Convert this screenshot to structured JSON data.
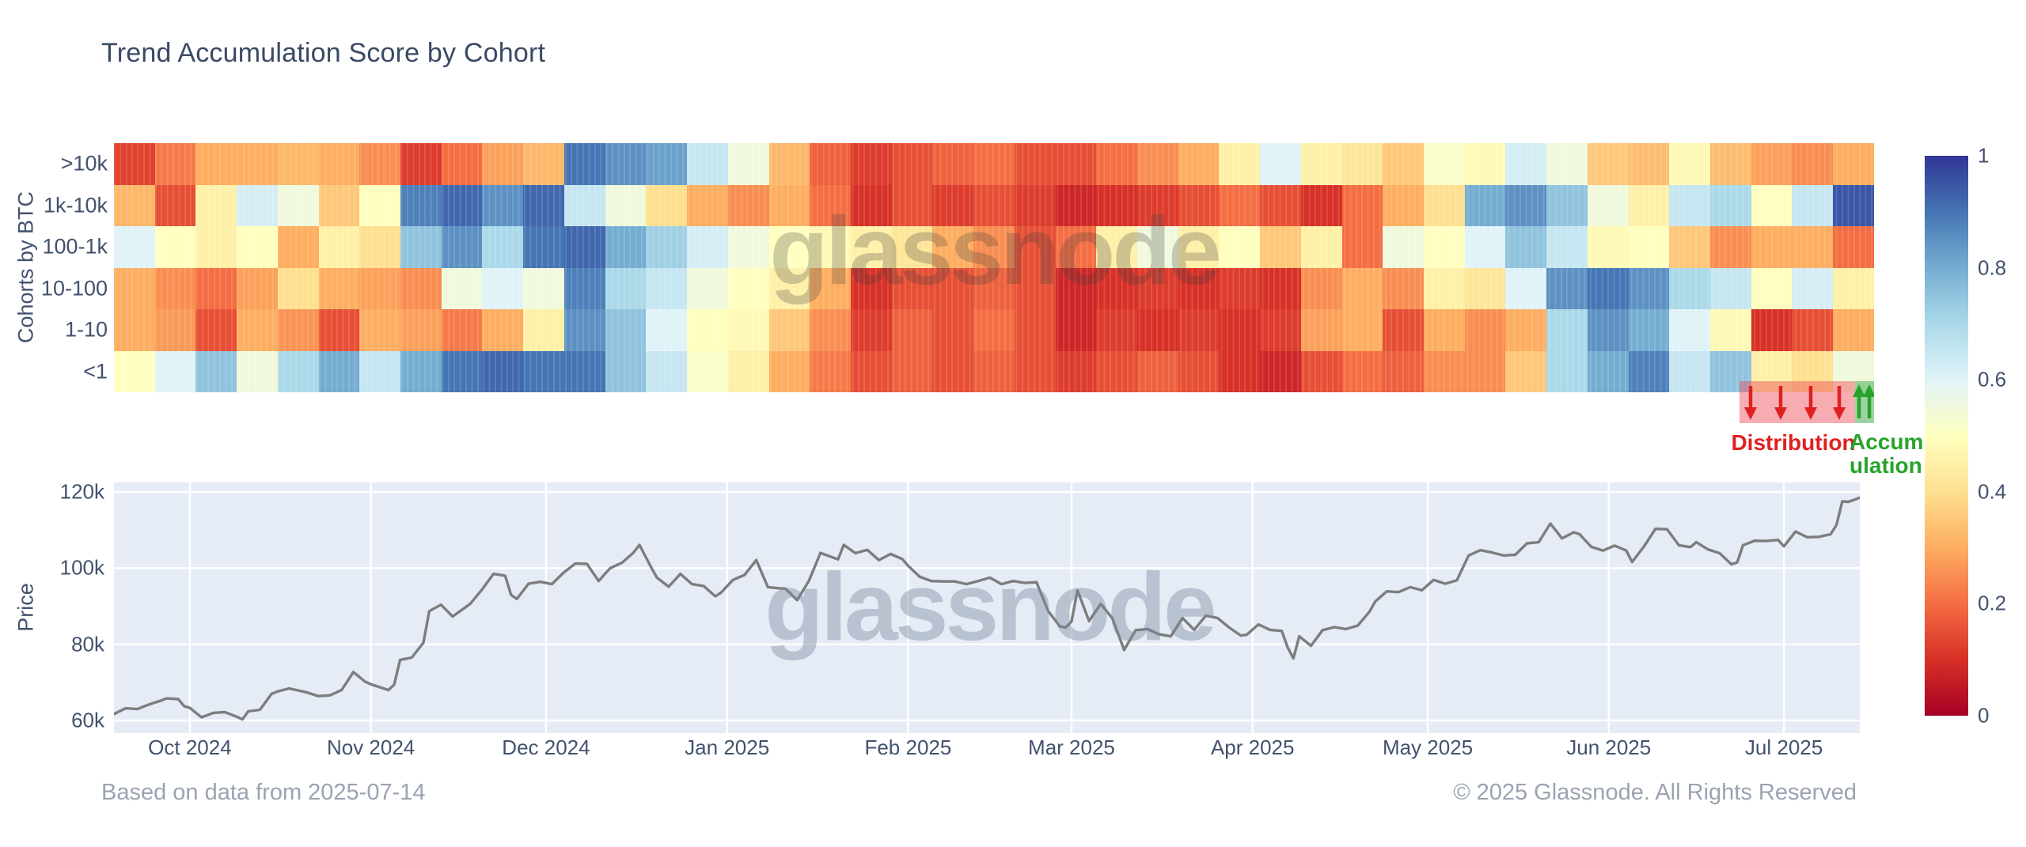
{
  "title": "Trend Accumulation Score by Cohort",
  "watermark": "glassnode",
  "footer": {
    "left": "Based on data from 2025-07-14",
    "right": "© 2025 Glassnode. All Rights Reserved"
  },
  "colors": {
    "title_text": "#3b4a63",
    "axis_text": "#42526e",
    "footer_text": "#9aa3b2",
    "price_line": "#7d7d7d",
    "price_plot_bg": "#e5ecf6",
    "distribution_red": "#e02020",
    "accumulation_green": "#27a32b"
  },
  "chart_data": [
    {
      "type": "heatmap",
      "title": "Trend Accumulation Score by Cohort",
      "ylabel": "Cohorts by BTC",
      "categories_y": [
        ">10k",
        "1k-10k",
        "100-1k",
        "10-100",
        "1-10",
        "<1"
      ],
      "x_start": "2024-09-18",
      "x_end": "2025-07-14",
      "x_unit": "week",
      "score_range": [
        0,
        1
      ],
      "colorscale": "RdYlBu",
      "colorscale_stops": [
        "#a50026",
        "#d73027",
        "#f46d43",
        "#fdae61",
        "#fee090",
        "#ffffbf",
        "#e0f3f8",
        "#abd9e9",
        "#74add1",
        "#4575b4",
        "#313695"
      ],
      "colorbar_ticks": [
        "1",
        "0.8",
        "0.6",
        "0.4",
        "0.2",
        "0"
      ],
      "series": [
        {
          "name": ">10k",
          "values": [
            0.13,
            0.22,
            0.3,
            0.3,
            0.32,
            0.3,
            0.25,
            0.12,
            0.2,
            0.28,
            0.32,
            0.9,
            0.85,
            0.82,
            0.65,
            0.55,
            0.32,
            0.18,
            0.12,
            0.15,
            0.18,
            0.2,
            0.15,
            0.15,
            0.2,
            0.25,
            0.3,
            0.45,
            0.6,
            0.45,
            0.42,
            0.35,
            0.52,
            0.48,
            0.62,
            0.55,
            0.35,
            0.33,
            0.48,
            0.33,
            0.28,
            0.25,
            0.3
          ]
        },
        {
          "name": "1k-10k",
          "values": [
            0.32,
            0.15,
            0.45,
            0.62,
            0.55,
            0.35,
            0.5,
            0.88,
            0.92,
            0.85,
            0.92,
            0.65,
            0.55,
            0.4,
            0.3,
            0.25,
            0.3,
            0.2,
            0.1,
            0.15,
            0.12,
            0.15,
            0.12,
            0.08,
            0.1,
            0.12,
            0.15,
            0.2,
            0.15,
            0.1,
            0.2,
            0.3,
            0.4,
            0.8,
            0.85,
            0.75,
            0.55,
            0.45,
            0.65,
            0.7,
            0.5,
            0.65,
            0.95
          ]
        },
        {
          "name": "100-1k",
          "values": [
            0.6,
            0.5,
            0.45,
            0.5,
            0.3,
            0.45,
            0.4,
            0.75,
            0.85,
            0.7,
            0.9,
            0.92,
            0.8,
            0.72,
            0.62,
            0.55,
            0.5,
            0.48,
            0.45,
            0.42,
            0.3,
            0.25,
            0.15,
            0.2,
            0.45,
            0.55,
            0.45,
            0.5,
            0.35,
            0.45,
            0.2,
            0.55,
            0.5,
            0.6,
            0.75,
            0.65,
            0.48,
            0.5,
            0.35,
            0.25,
            0.3,
            0.3,
            0.2
          ]
        },
        {
          "name": "10-100",
          "values": [
            0.3,
            0.25,
            0.2,
            0.28,
            0.4,
            0.3,
            0.28,
            0.25,
            0.55,
            0.6,
            0.55,
            0.88,
            0.7,
            0.65,
            0.55,
            0.5,
            0.45,
            0.3,
            0.1,
            0.15,
            0.15,
            0.18,
            0.15,
            0.08,
            0.1,
            0.12,
            0.1,
            0.12,
            0.1,
            0.25,
            0.3,
            0.25,
            0.45,
            0.42,
            0.6,
            0.85,
            0.9,
            0.85,
            0.7,
            0.65,
            0.5,
            0.62,
            0.45
          ]
        },
        {
          "name": "1-10",
          "values": [
            0.3,
            0.27,
            0.15,
            0.3,
            0.26,
            0.15,
            0.3,
            0.28,
            0.22,
            0.3,
            0.45,
            0.85,
            0.75,
            0.6,
            0.5,
            0.48,
            0.35,
            0.25,
            0.12,
            0.18,
            0.15,
            0.2,
            0.15,
            0.08,
            0.12,
            0.1,
            0.12,
            0.1,
            0.12,
            0.28,
            0.3,
            0.15,
            0.3,
            0.25,
            0.3,
            0.7,
            0.85,
            0.8,
            0.6,
            0.48,
            0.1,
            0.15,
            0.3
          ]
        },
        {
          "name": "<1",
          "values": [
            0.5,
            0.6,
            0.75,
            0.55,
            0.7,
            0.8,
            0.65,
            0.8,
            0.9,
            0.92,
            0.9,
            0.9,
            0.75,
            0.65,
            0.52,
            0.45,
            0.3,
            0.22,
            0.15,
            0.18,
            0.15,
            0.18,
            0.15,
            0.12,
            0.15,
            0.18,
            0.15,
            0.1,
            0.08,
            0.15,
            0.2,
            0.18,
            0.25,
            0.25,
            0.35,
            0.7,
            0.8,
            0.88,
            0.65,
            0.75,
            0.45,
            0.4,
            0.55
          ]
        }
      ],
      "annotations": {
        "distribution": {
          "label": "Distribution",
          "color": "#e02020",
          "arrow_direction": "down",
          "arrow_count": 4
        },
        "accumulation": {
          "label": "Accumulation",
          "color": "#27a32b",
          "arrow_direction": "up",
          "arrow_count": 2
        }
      }
    },
    {
      "type": "line",
      "ylabel": "Price",
      "line_color": "#7d7d7d",
      "grid": true,
      "x_range_days": 299,
      "y_axis_k": {
        "min": 60,
        "max": 120
      },
      "y_ticks": [
        {
          "label": "120k",
          "value": 120
        },
        {
          "label": "100k",
          "value": 100
        },
        {
          "label": "80k",
          "value": 80
        },
        {
          "label": "60k",
          "value": 60
        }
      ],
      "x_ticks": [
        {
          "label": "Oct 2024",
          "day": 13
        },
        {
          "label": "Nov 2024",
          "day": 44
        },
        {
          "label": "Dec 2024",
          "day": 74
        },
        {
          "label": "Jan 2025",
          "day": 105
        },
        {
          "label": "Feb 2025",
          "day": 136
        },
        {
          "label": "Mar 2025",
          "day": 164
        },
        {
          "label": "Apr 2025",
          "day": 195
        },
        {
          "label": "May 2025",
          "day": 225
        },
        {
          "label": "Jun 2025",
          "day": 256
        },
        {
          "label": "Jul 2025",
          "day": 286
        }
      ],
      "points_day_priceK": [
        [
          0,
          61.7
        ],
        [
          2,
          63.2
        ],
        [
          4,
          63.0
        ],
        [
          6,
          64.2
        ],
        [
          8,
          65.2
        ],
        [
          9,
          65.8
        ],
        [
          11,
          65.6
        ],
        [
          12,
          63.8
        ],
        [
          13,
          63.3
        ],
        [
          15,
          60.8
        ],
        [
          17,
          62.0
        ],
        [
          19,
          62.2
        ],
        [
          21,
          61.0
        ],
        [
          22,
          60.3
        ],
        [
          23,
          62.4
        ],
        [
          25,
          62.8
        ],
        [
          27,
          67.0
        ],
        [
          28,
          67.6
        ],
        [
          30,
          68.4
        ],
        [
          33,
          67.4
        ],
        [
          35,
          66.4
        ],
        [
          37,
          66.6
        ],
        [
          39,
          68.0
        ],
        [
          41,
          72.7
        ],
        [
          43,
          70.2
        ],
        [
          44,
          69.5
        ],
        [
          47,
          68.0
        ],
        [
          48,
          69.4
        ],
        [
          49,
          75.9
        ],
        [
          51,
          76.5
        ],
        [
          53,
          80.4
        ],
        [
          54,
          88.7
        ],
        [
          56,
          90.4
        ],
        [
          58,
          87.3
        ],
        [
          61,
          90.6
        ],
        [
          63,
          94.3
        ],
        [
          65,
          98.5
        ],
        [
          67,
          98.0
        ],
        [
          68,
          93.0
        ],
        [
          69,
          91.9
        ],
        [
          71,
          95.9
        ],
        [
          73,
          96.4
        ],
        [
          75,
          95.8
        ],
        [
          77,
          98.8
        ],
        [
          79,
          101.2
        ],
        [
          81,
          101.1
        ],
        [
          83,
          96.6
        ],
        [
          85,
          100.0
        ],
        [
          87,
          101.4
        ],
        [
          89,
          104.1
        ],
        [
          90,
          106.1
        ],
        [
          92,
          100.2
        ],
        [
          93,
          97.5
        ],
        [
          95,
          95.1
        ],
        [
          97,
          98.5
        ],
        [
          99,
          95.8
        ],
        [
          101,
          95.3
        ],
        [
          103,
          92.6
        ],
        [
          104,
          93.6
        ],
        [
          106,
          96.9
        ],
        [
          108,
          98.2
        ],
        [
          110,
          102.1
        ],
        [
          112,
          95.0
        ],
        [
          114,
          94.7
        ],
        [
          115,
          94.6
        ],
        [
          117,
          91.6
        ],
        [
          119,
          96.6
        ],
        [
          121,
          104.0
        ],
        [
          124,
          102.3
        ],
        [
          125,
          106.1
        ],
        [
          127,
          103.9
        ],
        [
          129,
          104.8
        ],
        [
          131,
          102.1
        ],
        [
          133,
          103.7
        ],
        [
          135,
          102.4
        ],
        [
          136,
          100.6
        ],
        [
          138,
          97.7
        ],
        [
          140,
          96.6
        ],
        [
          142,
          96.5
        ],
        [
          144,
          96.5
        ],
        [
          146,
          95.8
        ],
        [
          148,
          96.6
        ],
        [
          150,
          97.5
        ],
        [
          152,
          95.8
        ],
        [
          154,
          96.6
        ],
        [
          156,
          96.1
        ],
        [
          158,
          96.3
        ],
        [
          160,
          88.7
        ],
        [
          162,
          84.7
        ],
        [
          163,
          84.4
        ],
        [
          164,
          86.0
        ],
        [
          165,
          94.2
        ],
        [
          167,
          86.1
        ],
        [
          169,
          90.6
        ],
        [
          171,
          86.8
        ],
        [
          173,
          78.5
        ],
        [
          175,
          83.7
        ],
        [
          177,
          84.0
        ],
        [
          179,
          82.6
        ],
        [
          181,
          82.1
        ],
        [
          183,
          86.9
        ],
        [
          185,
          83.8
        ],
        [
          187,
          87.5
        ],
        [
          189,
          86.9
        ],
        [
          191,
          84.4
        ],
        [
          193,
          82.3
        ],
        [
          194,
          82.5
        ],
        [
          196,
          85.2
        ],
        [
          198,
          83.8
        ],
        [
          200,
          83.5
        ],
        [
          201,
          79.2
        ],
        [
          202,
          76.3
        ],
        [
          203,
          82.1
        ],
        [
          205,
          79.6
        ],
        [
          207,
          83.7
        ],
        [
          209,
          84.5
        ],
        [
          211,
          84.0
        ],
        [
          213,
          84.9
        ],
        [
          215,
          88.5
        ],
        [
          216,
          91.2
        ],
        [
          218,
          93.9
        ],
        [
          220,
          93.7
        ],
        [
          222,
          95.0
        ],
        [
          224,
          94.2
        ],
        [
          226,
          96.9
        ],
        [
          228,
          95.9
        ],
        [
          230,
          96.8
        ],
        [
          232,
          103.3
        ],
        [
          234,
          104.7
        ],
        [
          236,
          104.1
        ],
        [
          238,
          103.3
        ],
        [
          240,
          103.5
        ],
        [
          242,
          106.5
        ],
        [
          244,
          106.8
        ],
        [
          246,
          111.7
        ],
        [
          248,
          107.8
        ],
        [
          250,
          109.4
        ],
        [
          251,
          108.9
        ],
        [
          253,
          105.6
        ],
        [
          255,
          104.6
        ],
        [
          257,
          105.9
        ],
        [
          259,
          104.6
        ],
        [
          260,
          101.6
        ],
        [
          262,
          105.6
        ],
        [
          264,
          110.3
        ],
        [
          266,
          110.2
        ],
        [
          268,
          106.0
        ],
        [
          270,
          105.5
        ],
        [
          271,
          106.8
        ],
        [
          273,
          104.9
        ],
        [
          275,
          103.9
        ],
        [
          277,
          101.0
        ],
        [
          278,
          101.5
        ],
        [
          279,
          106.0
        ],
        [
          281,
          107.2
        ],
        [
          283,
          107.1
        ],
        [
          285,
          107.4
        ],
        [
          286,
          105.7
        ],
        [
          288,
          109.6
        ],
        [
          290,
          108.1
        ],
        [
          292,
          108.2
        ],
        [
          294,
          108.9
        ],
        [
          295,
          111.3
        ],
        [
          296,
          117.5
        ],
        [
          297,
          117.4
        ],
        [
          298,
          117.9
        ],
        [
          299,
          118.5
        ]
      ]
    }
  ]
}
